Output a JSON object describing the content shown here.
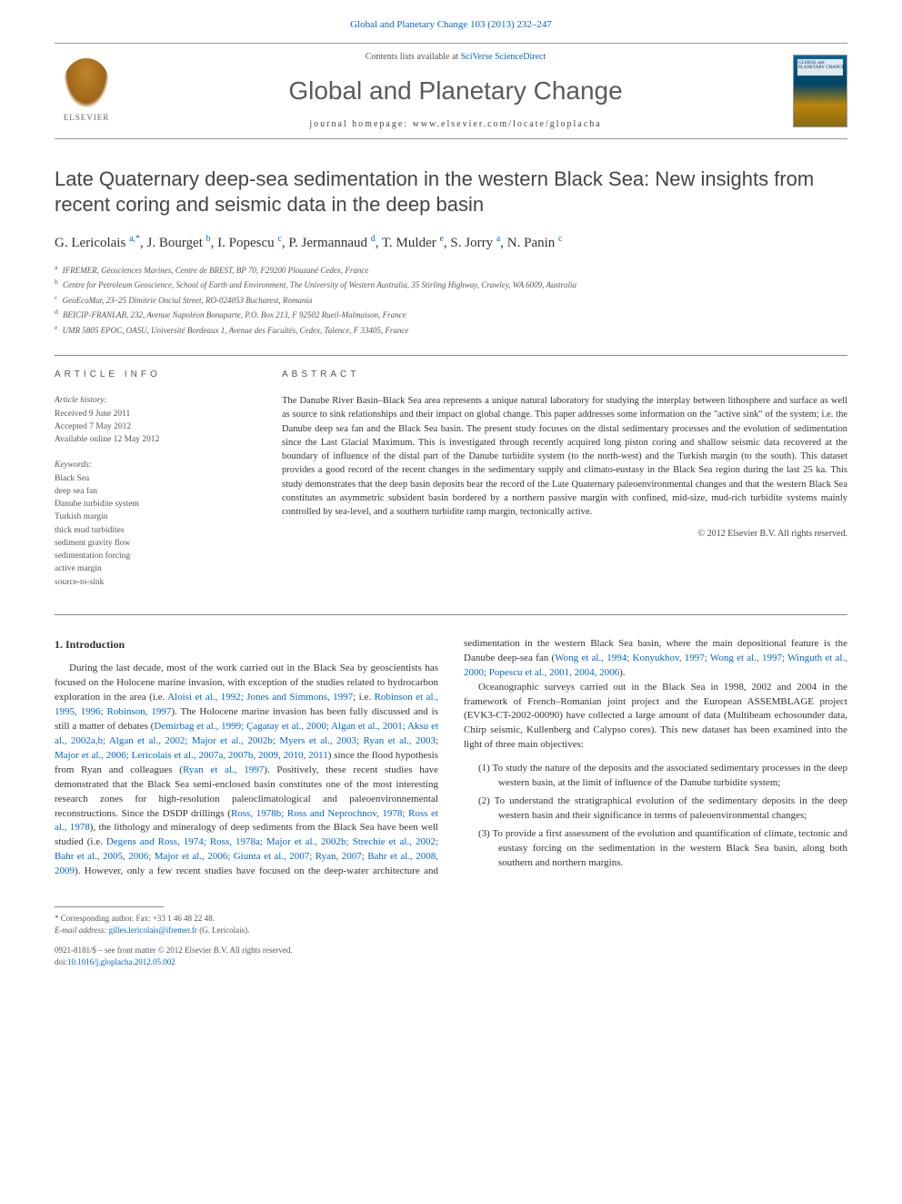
{
  "top_citation": "Global and Planetary Change 103 (2013) 232–247",
  "header": {
    "contents_prefix": "Contents lists available at ",
    "contents_link": "SciVerse ScienceDirect",
    "journal_name": "Global and Planetary Change",
    "homepage_prefix": "journal homepage: ",
    "homepage": "www.elsevier.com/locate/gloplacha",
    "elsevier_label": "ELSEVIER",
    "cover_text": "GLOBAL and PLANETARY CHANGE"
  },
  "title": "Late Quaternary deep-sea sedimentation in the western Black Sea: New insights from recent coring and seismic data in the deep basin",
  "authors_html": "G. Lericolais <sup>a,*</sup>, J. Bourget <sup>b</sup>, I. Popescu <sup>c</sup>, P. Jermannaud <sup>d</sup>, T. Mulder <sup>e</sup>, S. Jorry <sup>a</sup>, N. Panin <sup>c</sup>",
  "affiliations": [
    {
      "mark": "a",
      "text": "IFREMER, Géosciences Marines, Centre de BREST, BP 70, F29200 Plouzané Cedex, France"
    },
    {
      "mark": "b",
      "text": "Centre for Petroleum Geoscience, School of Earth and Environment, The University of Western Australia, 35 Stirling Highway, Crawley, WA 6009, Australia"
    },
    {
      "mark": "c",
      "text": "GeoEcoMar, 23–25 Dimitrie Onciul Street, RO-024053 Bucharest, Romania"
    },
    {
      "mark": "d",
      "text": "BEICIP-FRANLAB, 232, Avenue Napoléon Bonaparte, P.O. Box 213, F 92502 Rueil-Malmaison, France"
    },
    {
      "mark": "e",
      "text": "UMR 5805 EPOC, OASU, Université Bordeaux 1, Avenue des Facultés, Cedex, Talence, F 33405, France"
    }
  ],
  "info": {
    "heading": "article info",
    "history_label": "Article history:",
    "received": "Received 9 June 2011",
    "accepted": "Accepted 7 May 2012",
    "online": "Available online 12 May 2012",
    "keywords_label": "Keywords:",
    "keywords": [
      "Black Sea",
      "deep sea fan",
      "Danube turbidite system",
      "Turkish margin",
      "thick mud turbidites",
      "sediment gravity flow",
      "sedimentation forcing",
      "active margin",
      "source-to-sink"
    ]
  },
  "abstract": {
    "heading": "abstract",
    "text": "The Danube River Basin–Black Sea area represents a unique natural laboratory for studying the interplay between lithosphere and surface as well as source to sink relationships and their impact on global change. This paper addresses some information on the \"active sink\" of the system; i.e. the Danube deep sea fan and the Black Sea basin. The present study focuses on the distal sedimentary processes and the evolution of sedimentation since the Last Glacial Maximum. This is investigated through recently acquired long piston coring and shallow seismic data recovered at the boundary of influence of the distal part of the Danube turbidite system (to the north-west) and the Turkish margin (to the south). This dataset provides a good record of the recent changes in the sedimentary supply and climato-eustasy in the Black Sea region during the last 25 ka. This study demonstrates that the deep basin deposits bear the record of the Late Quaternary paleoenvironmental changes and that the western Black Sea constitutes an asymmetric subsident basin bordered by a northern passive margin with confined, mid-size, mud-rich turbidite systems mainly controlled by sea-level, and a southern turbidite ramp margin, tectonically active.",
    "copyright": "© 2012 Elsevier B.V. All rights reserved."
  },
  "body": {
    "intro_heading": "1. Introduction",
    "para1_pre": "During the last decade, most of the work carried out in the Black Sea by geoscientists has focused on the Holocene marine invasion, with exception of the studies related to hydrocarbon exploration in the area (i.e. ",
    "para1_link1": "Aloisi et al., 1992; Jones and Simmons, 1997",
    "para1_mid1": "; i.e. ",
    "para1_link2": "Robinson et al., 1995, 1996; Robinson, 1997",
    "para1_mid2": "). The Holocene marine invasion has been fully discussed and is still a matter of debates (",
    "para1_link3": "Demirbag et al., 1999; Çagatay et al., 2000; Algan et al., 2001; Aksu et al., 2002a,b; Algan et al., 2002; Major et al., 2002b; Myers et al., 2003; Ryan et al., 2003; Major et al., 2006; Lericolais et al., 2007a, 2007b, 2009, 2010, 2011",
    "para1_mid3": ") since the flood hypothesis from Ryan and colleagues (",
    "para1_link4": "Ryan et al., 1997",
    "para1_mid4": "). Positively, these recent studies have demonstrated that the Black Sea semi-enclosed basin constitutes one of the most interesting research zones for high-resolution paleoclimatological and paleoenvironnemental reconstructions. Since the DSDP drillings (",
    "para1_link5": "Ross, 1978b; Ross and Neprochnov, 1978; Ross et al., 1978",
    "para1_mid5": "), the lithology and mineralogy of deep sediments from the Black Sea have been well studied (i.e. ",
    "para1_link6": "Degens and Ross, 1974; Ross, 1978a; Major et al., 2002b; Strechie et al., 2002; Bahr et al., 2005, 2006; Major et al., 2006; Giunta et al., 2007; Ryan, 2007; Bahr et al., 2008, 2009",
    "para1_mid6": "). However, only a few recent studies have focused on the deep-water architecture and sedimentation in the western Black Sea basin, where the main depositional feature is the Danube deep-sea fan (",
    "para1_link7": "Wong et al., 1994; Konyukhov, 1997; Wong et al., 1997; Winguth et al., 2000; Popescu et al., 2001, 2004, 2006",
    "para1_end": ").",
    "para2": "Oceanographic surveys carried out in the Black Sea in 1998, 2002 and 2004 in the framework of French–Romanian joint project and the European ASSEMBLAGE project (EVK3-CT-2002-00090) have collected a large amount of data (Multibeam echosounder data, Chirp seismic, Kullenberg and Calypso cores). This new dataset has been examined into the light of three main objectives:",
    "objectives": [
      "(1) To study the nature of the deposits and the associated sedimentary processes in the deep western basin, at the limit of influence of the Danube turbidite system;",
      "(2) To understand the stratigraphical evolution of the sedimentary deposits in the deep western basin and their significance in terms of paleoenvironmental changes;",
      "(3) To provide a first assessment of the evolution and quantification of climate, tectonic and eustasy forcing on the sedimentation in the western Black Sea basin, along both southern and northern margins."
    ]
  },
  "footer": {
    "corr": "* Corresponding author. Fax: +33 1 46 48 22 48.",
    "email_label": "E-mail address: ",
    "email": "gilles.lericolais@ifremer.fr",
    "email_suffix": " (G. Lericolais).",
    "front_matter": "0921-8181/$ – see front matter © 2012 Elsevier B.V. All rights reserved.",
    "doi_label": "doi:",
    "doi": "10.1016/j.gloplacha.2012.05.002"
  },
  "colors": {
    "link": "#0066cc",
    "text": "#333333",
    "muted": "#555555",
    "rule": "#888888"
  }
}
